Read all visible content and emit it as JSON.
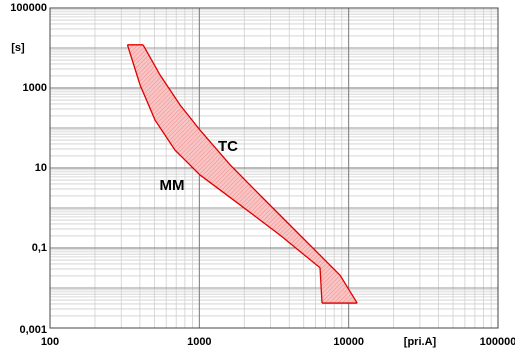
{
  "chart_data": {
    "type": "band",
    "log_x": true,
    "log_y": true,
    "grid": true,
    "minor_grid": true,
    "x_label": "[pri.A]",
    "y_label": "[s]",
    "xlim": [
      100,
      100000
    ],
    "xticks": [
      100,
      1000,
      10000,
      100000
    ],
    "ylim": [
      0.001,
      100000
    ],
    "yticks": [
      {
        "value": 0.001,
        "label": "0,001"
      },
      {
        "value": 0.1,
        "label": "0,1"
      },
      10,
      1000,
      100000
    ],
    "fill_color": "#f6b3b3",
    "series": [
      {
        "name": "MM",
        "color": "#e00000",
        "x": [
          330,
          401,
          505,
          687,
          1010,
          1870,
          3470,
          6430,
          6630
        ],
        "values": [
          12000,
          1190,
          158,
          28,
          6.7,
          1.2,
          0.21,
          0.032,
          0.0042
        ]
      },
      {
        "name": "TC",
        "color": "#e00000",
        "x": [
          420,
          546,
          743,
          1010,
          1610,
          2550,
          4720,
          8750,
          11400
        ],
        "values": [
          12000,
          2110,
          376,
          89,
          11.9,
          2.1,
          0.21,
          0.021,
          0.0042
        ]
      }
    ]
  }
}
